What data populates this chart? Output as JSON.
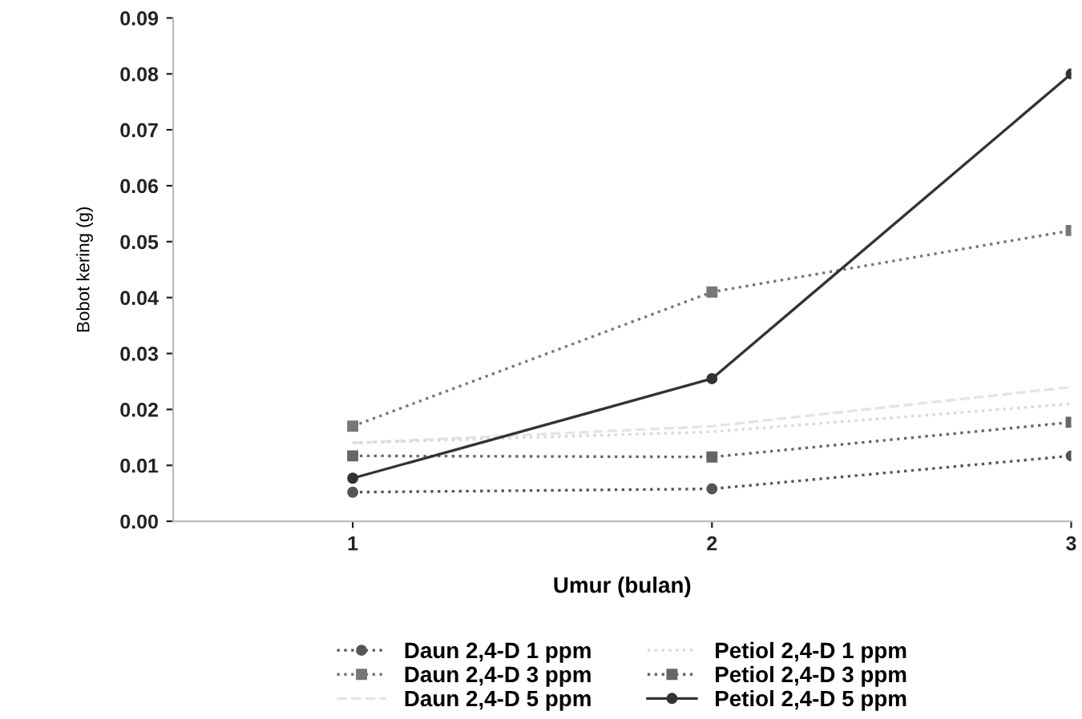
{
  "chart_data": {
    "type": "line",
    "xlabel": "Umur (bulan)",
    "ylabel": "Bobot kering (g)",
    "x": [
      1,
      2,
      3
    ],
    "xlim": [
      0.5,
      3
    ],
    "xticks": [
      1,
      2,
      3
    ],
    "ylim": [
      0,
      0.09
    ],
    "yticks": [
      {
        "value": 0,
        "label": "0.00"
      },
      {
        "value": 0.01,
        "label": "0.01"
      },
      {
        "value": 0.02,
        "label": "0.02"
      },
      {
        "value": 0.03,
        "label": "0.03"
      },
      {
        "value": 0.04,
        "label": "0.04"
      },
      {
        "value": 0.05,
        "label": "0.05"
      },
      {
        "value": 0.06,
        "label": "0.06"
      },
      {
        "value": 0.07,
        "label": "0.07"
      },
      {
        "value": 0.08,
        "label": "0.08"
      },
      {
        "value": 0.09,
        "label": "0.09"
      }
    ],
    "grid": false,
    "legend": "bottom",
    "series": [
      {
        "name": "Daun 2,4-D 1 ppm",
        "color": "#555555",
        "values": [
          0.0052,
          0.0058,
          0.0117
        ],
        "marker": "circle",
        "line_style": "dotted"
      },
      {
        "name": "Daun 2,4-D 3 ppm",
        "color": "#777777",
        "values": [
          0.017,
          0.041,
          0.052
        ],
        "marker": "square",
        "line_style": "dotted"
      },
      {
        "name": "Daun 2,4-D 5 ppm",
        "color": "#e4e4e4",
        "values": [
          0.014,
          0.017,
          0.024
        ],
        "marker": "none",
        "line_style": "dashed"
      },
      {
        "name": "Petiol 2,4-D 1 ppm",
        "color": "#d8d8d8",
        "values": [
          0.014,
          0.016,
          0.021
        ],
        "marker": "none",
        "line_style": "dotted"
      },
      {
        "name": "Petiol 2,4-D 3 ppm",
        "color": "#666666",
        "values": [
          0.0117,
          0.0115,
          0.0177
        ],
        "marker": "square",
        "line_style": "dotted"
      },
      {
        "name": "Petiol 2,4-D 5 ppm",
        "color": "#333333",
        "values": [
          0.0077,
          0.0255,
          0.08
        ],
        "marker": "circle",
        "line_style": "solid"
      }
    ]
  }
}
